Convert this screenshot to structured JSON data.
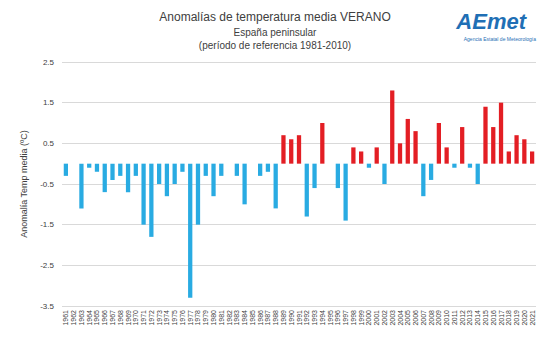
{
  "chart_data": {
    "type": "bar",
    "title": "Anomalías de temperatura media VERANO",
    "subtitle": [
      "España peninsular",
      "(período de referencia 1981-2010)"
    ],
    "logo_text": "AEmet",
    "logo_caption": "Agencia Estatal de Meteorología",
    "y_label": "Anomalía Temp media (ºC)",
    "categories": [
      "1961",
      "1962",
      "1963",
      "1964",
      "1965",
      "1966",
      "1967",
      "1968",
      "1969",
      "1970",
      "1971",
      "1972",
      "1973",
      "1974",
      "1975",
      "1976",
      "1977",
      "1978",
      "1979",
      "1980",
      "1981",
      "1982",
      "1983",
      "1984",
      "1985",
      "1986",
      "1987",
      "1988",
      "1989",
      "1990",
      "1991",
      "1992",
      "1993",
      "1994",
      "1995",
      "1996",
      "1997",
      "1998",
      "1999",
      "2000",
      "2001",
      "2002",
      "2003",
      "2004",
      "2005",
      "2006",
      "2007",
      "2008",
      "2009",
      "2010",
      "2011",
      "2012",
      "2013",
      "2014",
      "2015",
      "2016",
      "2017",
      "2018",
      "2019",
      "2020",
      "2021"
    ],
    "values": [
      -0.3,
      0.0,
      -1.1,
      -0.1,
      -0.2,
      -0.7,
      -0.4,
      -0.3,
      -0.7,
      -0.3,
      -1.5,
      -1.8,
      -0.5,
      -0.8,
      -0.5,
      -0.2,
      -3.3,
      -1.5,
      -0.3,
      -0.8,
      -0.3,
      0.0,
      -0.3,
      -1.0,
      0.0,
      -0.3,
      -0.2,
      -1.1,
      0.7,
      0.6,
      0.7,
      -1.3,
      -0.6,
      1.0,
      0.0,
      -0.6,
      -1.4,
      0.4,
      0.3,
      -0.1,
      0.4,
      -0.5,
      1.8,
      0.5,
      1.1,
      0.8,
      -0.8,
      -0.4,
      1.0,
      0.4,
      -0.1,
      0.9,
      -0.1,
      -0.5,
      1.4,
      0.9,
      1.5,
      0.3,
      0.7,
      0.6,
      0.3
    ],
    "colors": [
      "#29abe2",
      "#29abe2",
      "#29abe2",
      "#29abe2",
      "#29abe2",
      "#29abe2",
      "#29abe2",
      "#29abe2",
      "#29abe2",
      "#29abe2",
      "#29abe2",
      "#29abe2",
      "#29abe2",
      "#29abe2",
      "#29abe2",
      "#29abe2",
      "#29abe2",
      "#29abe2",
      "#29abe2",
      "#29abe2",
      "#29abe2",
      "#29abe2",
      "#29abe2",
      "#29abe2",
      "#29abe2",
      "#29abe2",
      "#29abe2",
      "#29abe2",
      "#e31e24",
      "#e31e24",
      "#e31e24",
      "#29abe2",
      "#29abe2",
      "#e31e24",
      "#29abe2",
      "#29abe2",
      "#29abe2",
      "#e31e24",
      "#e31e24",
      "#29abe2",
      "#e31e24",
      "#29abe2",
      "#e31e24",
      "#e31e24",
      "#e31e24",
      "#e31e24",
      "#29abe2",
      "#29abe2",
      "#e31e24",
      "#e31e24",
      "#29abe2",
      "#e31e24",
      "#29abe2",
      "#29abe2",
      "#e31e24",
      "#e31e24",
      "#e31e24",
      "#e31e24",
      "#e31e24",
      "#e31e24",
      "#e31e24"
    ],
    "ylim": [
      -3.5,
      2.5
    ],
    "yticks": [
      -3.5,
      -2.5,
      -1.5,
      -0.5,
      0.5,
      1.5,
      2.5
    ],
    "grid": true
  }
}
